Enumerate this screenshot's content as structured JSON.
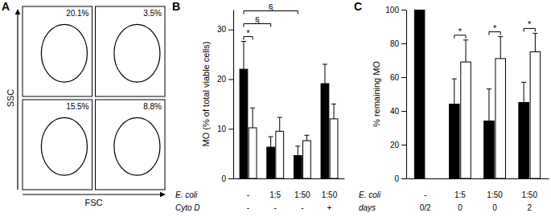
{
  "chart_data": [
    {
      "type": "flow_dot_plot",
      "panel_label": "A",
      "xlabel": "FSC",
      "ylabel": "SSC",
      "tick_labels": false,
      "data_labels": true,
      "values": [
        20.1,
        3.5,
        15.5,
        8.8
      ],
      "value_labels": [
        "20.1%",
        "3.5%",
        "15.5%",
        "8.8%"
      ]
    },
    {
      "type": "bar",
      "panel_label": "B",
      "ylabel": "MO (% of total viable cells)",
      "xlabel": "E. coli",
      "categories": [
        "-",
        "1:5",
        "1:50",
        "1:50"
      ],
      "rows": [
        {
          "label": "Cyto D",
          "values": [
            "-",
            "-",
            "-",
            "+"
          ]
        }
      ],
      "series": [
        {
          "color": "#000000",
          "values": [
            22,
            6.3,
            4.6,
            19.1
          ],
          "errors": [
            5.6,
            2.1,
            1.9,
            3.9
          ]
        },
        {
          "color": "#ffffff",
          "values": [
            10.2,
            9.5,
            7.6,
            12
          ],
          "errors": [
            4,
            2.8,
            1.1,
            3
          ]
        }
      ],
      "ylim": [
        0,
        34
      ],
      "yticks": [
        0,
        10,
        20,
        30
      ],
      "significance": [
        {
          "label": "*",
          "from": [
            0,
            0
          ],
          "to": [
            0,
            1
          ]
        },
        {
          "label": "§",
          "from": [
            0,
            0
          ],
          "to": [
            1,
            0
          ]
        },
        {
          "label": "§",
          "from": [
            0,
            0
          ],
          "to": [
            2,
            0
          ]
        }
      ]
    },
    {
      "type": "bar",
      "panel_label": "C",
      "ylabel": "% remaining MO",
      "xlabel": "E. coli",
      "categories": [
        "-",
        "1:5",
        "1:50",
        "1:50"
      ],
      "rows": [
        {
          "label": "days",
          "values": [
            "0/2",
            "0",
            "0",
            "2"
          ]
        }
      ],
      "series": [
        {
          "color": "#000000",
          "values": [
            100,
            44,
            34,
            45
          ],
          "errors": [
            null,
            15,
            19,
            12
          ]
        },
        {
          "color": "#ffffff",
          "values": [
            null,
            69,
            71,
            75
          ],
          "errors": [
            null,
            13,
            13,
            11
          ]
        }
      ],
      "ylim": [
        0,
        100
      ],
      "yticks": [
        0,
        20,
        40,
        60,
        80,
        100
      ],
      "significance": [
        {
          "label": "*",
          "from": [
            1,
            0
          ],
          "to": [
            1,
            1
          ]
        },
        {
          "label": "*",
          "from": [
            2,
            0
          ],
          "to": [
            2,
            1
          ]
        },
        {
          "label": "*",
          "from": [
            3,
            0
          ],
          "to": [
            3,
            1
          ]
        }
      ]
    }
  ]
}
